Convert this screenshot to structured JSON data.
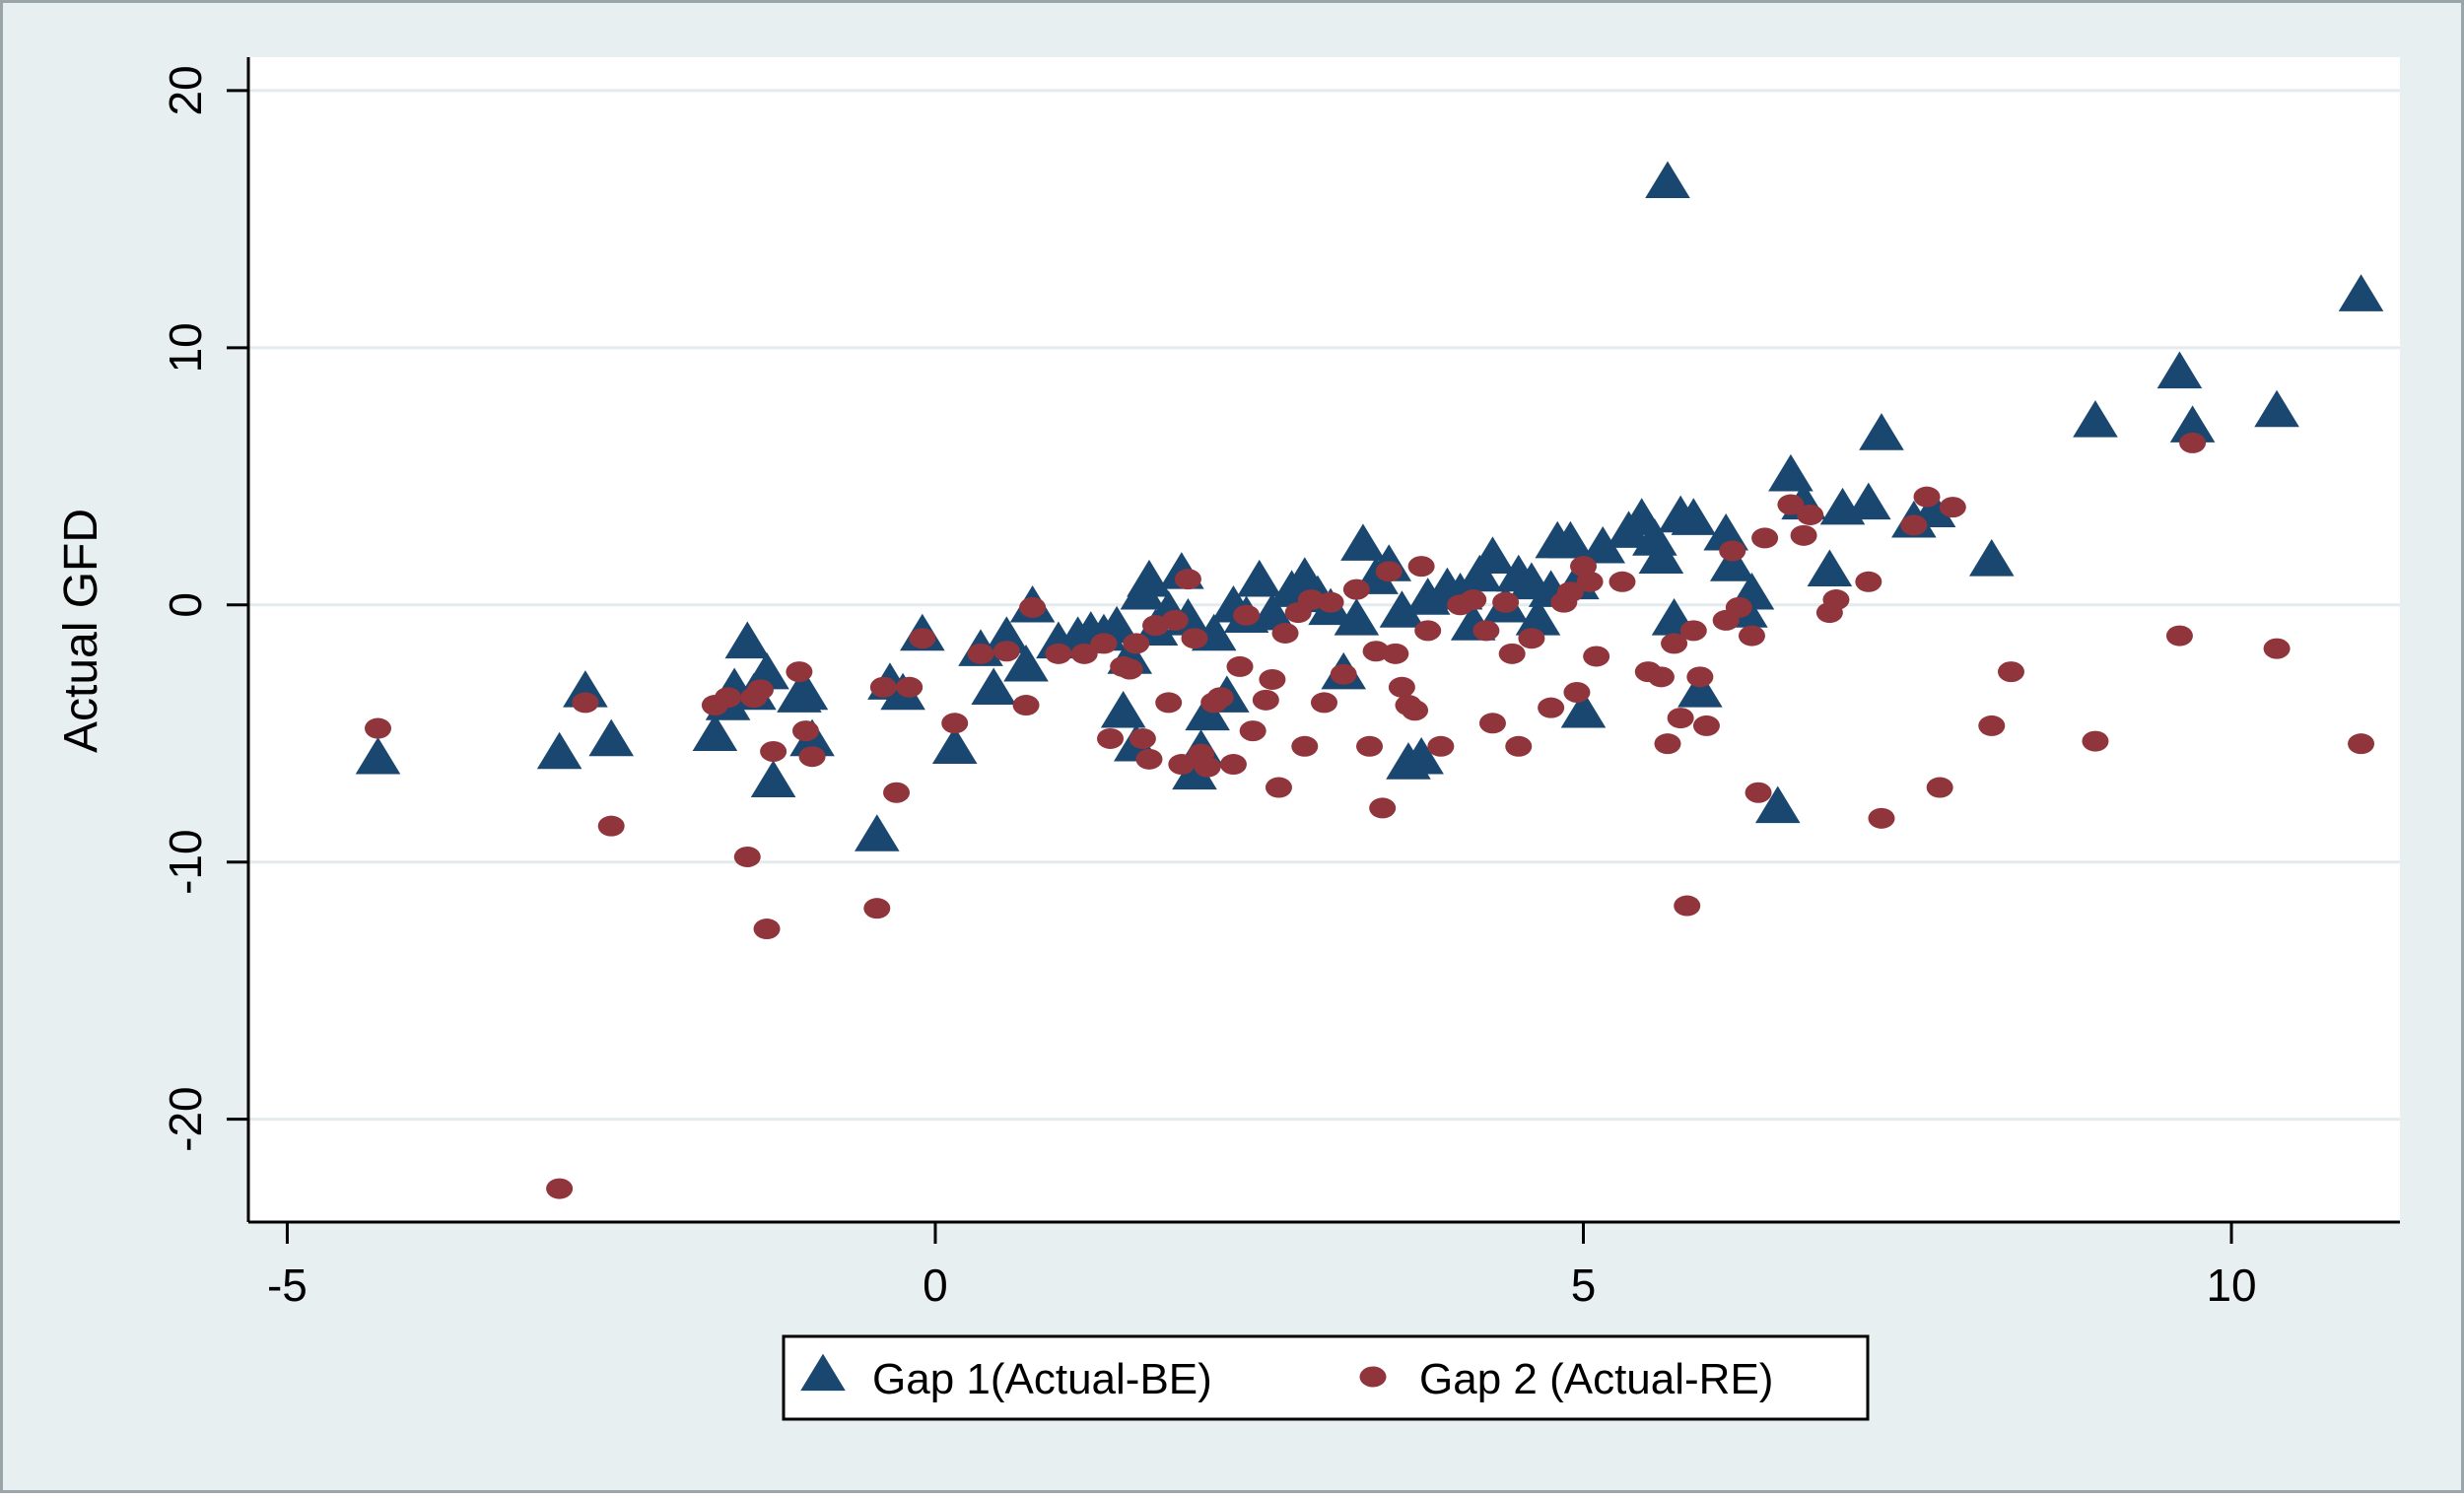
{
  "chart_data": {
    "type": "scatter",
    "title": "",
    "xlabel": "",
    "ylabel": "Actual GFD",
    "xlim": [
      -5.3,
      11.3
    ],
    "ylim": [
      -24,
      21.3
    ],
    "xticks": [
      -5,
      0,
      5,
      10
    ],
    "yticks": [
      -20,
      -10,
      0,
      10,
      20
    ],
    "xtick_labels": [
      "-5",
      "0",
      "5",
      "10"
    ],
    "ytick_labels": [
      "-20",
      "-10",
      "0",
      "10",
      "20"
    ],
    "grid": "horizontal",
    "legend_position": "bottom-outside",
    "colors": {
      "outer_bg": "#e8eff1",
      "plot_bg": "#ffffff",
      "gridline": "#e3ebee",
      "series1": "#1a476f",
      "series2": "#90353b",
      "axis": "#000000"
    },
    "series": [
      {
        "name": "Gap 1(Actual-BE)",
        "marker": "triangle",
        "points": [
          [
            -4.3,
            -6.0
          ],
          [
            -2.9,
            -5.8
          ],
          [
            -2.7,
            -3.4
          ],
          [
            -2.5,
            -5.3
          ],
          [
            -1.7,
            -5.1
          ],
          [
            -1.6,
            -3.9
          ],
          [
            -1.55,
            -3.3
          ],
          [
            -1.45,
            -1.5
          ],
          [
            -1.4,
            -3.5
          ],
          [
            -1.3,
            -2.7
          ],
          [
            -1.25,
            -6.9
          ],
          [
            -1.05,
            -3.6
          ],
          [
            -1.0,
            -3.5
          ],
          [
            -0.95,
            -5.3
          ],
          [
            -0.45,
            -9.0
          ],
          [
            -0.35,
            -3.1
          ],
          [
            -0.25,
            -3.5
          ],
          [
            -0.1,
            -1.2
          ],
          [
            0.15,
            -5.6
          ],
          [
            0.35,
            -1.8
          ],
          [
            0.45,
            -3.3
          ],
          [
            0.55,
            -1.3
          ],
          [
            0.7,
            -2.4
          ],
          [
            0.75,
            -0.1
          ],
          [
            0.95,
            -1.5
          ],
          [
            1.1,
            -1.3
          ],
          [
            1.2,
            -1.1
          ],
          [
            1.3,
            -1.2
          ],
          [
            1.4,
            -0.9
          ],
          [
            1.45,
            -4.2
          ],
          [
            1.5,
            -2.1
          ],
          [
            1.55,
            -5.5
          ],
          [
            1.6,
            0.4
          ],
          [
            1.65,
            0.9
          ],
          [
            1.7,
            -1.0
          ],
          [
            1.8,
            -0.3
          ],
          [
            1.9,
            1.2
          ],
          [
            1.95,
            -0.6
          ],
          [
            2.0,
            -6.6
          ],
          [
            2.05,
            -5.7
          ],
          [
            2.1,
            -4.3
          ],
          [
            2.15,
            -1.2
          ],
          [
            2.25,
            -3.6
          ],
          [
            2.3,
            -0.1
          ],
          [
            2.4,
            -0.5
          ],
          [
            2.5,
            0.9
          ],
          [
            2.6,
            -0.4
          ],
          [
            2.75,
            0.5
          ],
          [
            2.85,
            1.0
          ],
          [
            2.95,
            0.3
          ],
          [
            3.05,
            -0.2
          ],
          [
            3.15,
            -2.7
          ],
          [
            3.25,
            -0.6
          ],
          [
            3.3,
            2.3
          ],
          [
            3.4,
            1.0
          ],
          [
            3.5,
            1.5
          ],
          [
            3.6,
            -0.3
          ],
          [
            3.65,
            -6.2
          ],
          [
            3.75,
            -6.0
          ],
          [
            3.8,
            0.2
          ],
          [
            3.95,
            0.6
          ],
          [
            4.05,
            0.4
          ],
          [
            4.15,
            -0.8
          ],
          [
            4.2,
            1.1
          ],
          [
            4.3,
            1.8
          ],
          [
            4.4,
            -0.1
          ],
          [
            4.5,
            1.1
          ],
          [
            4.6,
            0.8
          ],
          [
            4.65,
            -0.6
          ],
          [
            4.75,
            0.5
          ],
          [
            4.8,
            2.4
          ],
          [
            4.9,
            2.4
          ],
          [
            4.95,
            0.8
          ],
          [
            5.0,
            -4.2
          ],
          [
            5.15,
            2.2
          ],
          [
            5.35,
            2.8
          ],
          [
            5.45,
            3.3
          ],
          [
            5.55,
            2.5
          ],
          [
            5.6,
            1.8
          ],
          [
            5.65,
            16.4
          ],
          [
            5.7,
            -0.6
          ],
          [
            5.75,
            3.4
          ],
          [
            5.85,
            3.3
          ],
          [
            5.9,
            -3.4
          ],
          [
            6.1,
            2.7
          ],
          [
            6.15,
            1.5
          ],
          [
            6.25,
            -0.3
          ],
          [
            6.3,
            0.4
          ],
          [
            6.5,
            -7.9
          ],
          [
            6.6,
            5.0
          ],
          [
            6.7,
            3.9
          ],
          [
            6.9,
            1.3
          ],
          [
            7.0,
            3.7
          ],
          [
            7.2,
            3.9
          ],
          [
            7.3,
            6.6
          ],
          [
            7.55,
            3.2
          ],
          [
            7.7,
            3.6
          ],
          [
            8.15,
            1.7
          ],
          [
            8.95,
            7.1
          ],
          [
            9.6,
            9.0
          ],
          [
            9.7,
            6.9
          ],
          [
            10.35,
            7.5
          ],
          [
            11.0,
            12.0
          ]
        ]
      },
      {
        "name": "Gap 2 (Actual-RE)",
        "marker": "circle",
        "points": [
          [
            -4.3,
            -4.8
          ],
          [
            -2.9,
            -22.7
          ],
          [
            -2.7,
            -3.8
          ],
          [
            -2.5,
            -8.6
          ],
          [
            -1.7,
            -3.9
          ],
          [
            -1.6,
            -3.6
          ],
          [
            -1.45,
            -9.8
          ],
          [
            -1.4,
            -3.6
          ],
          [
            -1.35,
            -3.3
          ],
          [
            -1.3,
            -12.6
          ],
          [
            -1.25,
            -5.7
          ],
          [
            -1.05,
            -2.6
          ],
          [
            -1.0,
            -4.9
          ],
          [
            -0.95,
            -5.9
          ],
          [
            -0.45,
            -11.8
          ],
          [
            -0.4,
            -3.2
          ],
          [
            -0.3,
            -7.3
          ],
          [
            -0.2,
            -3.2
          ],
          [
            -0.1,
            -1.3
          ],
          [
            0.15,
            -4.6
          ],
          [
            0.35,
            -1.9
          ],
          [
            0.55,
            -1.8
          ],
          [
            0.7,
            -3.9
          ],
          [
            0.75,
            -0.1
          ],
          [
            0.95,
            -1.9
          ],
          [
            1.15,
            -1.9
          ],
          [
            1.3,
            -1.5
          ],
          [
            1.35,
            -5.2
          ],
          [
            1.45,
            -2.4
          ],
          [
            1.5,
            -2.5
          ],
          [
            1.55,
            -1.5
          ],
          [
            1.6,
            -5.2
          ],
          [
            1.65,
            -6.0
          ],
          [
            1.7,
            -0.8
          ],
          [
            1.8,
            -3.8
          ],
          [
            1.85,
            -0.6
          ],
          [
            1.9,
            -6.2
          ],
          [
            1.95,
            1.0
          ],
          [
            2.0,
            -1.3
          ],
          [
            2.05,
            -5.8
          ],
          [
            2.1,
            -6.3
          ],
          [
            2.15,
            -3.8
          ],
          [
            2.2,
            -3.6
          ],
          [
            2.3,
            -6.2
          ],
          [
            2.35,
            -2.4
          ],
          [
            2.4,
            -0.4
          ],
          [
            2.45,
            -4.9
          ],
          [
            2.55,
            -3.7
          ],
          [
            2.6,
            -2.9
          ],
          [
            2.65,
            -7.1
          ],
          [
            2.7,
            -1.1
          ],
          [
            2.8,
            -0.3
          ],
          [
            2.85,
            -5.5
          ],
          [
            2.9,
            0.2
          ],
          [
            3.0,
            -3.8
          ],
          [
            3.05,
            0.1
          ],
          [
            3.15,
            -2.7
          ],
          [
            3.25,
            0.6
          ],
          [
            3.35,
            -5.5
          ],
          [
            3.4,
            -1.8
          ],
          [
            3.45,
            -7.9
          ],
          [
            3.5,
            1.3
          ],
          [
            3.55,
            -1.9
          ],
          [
            3.6,
            -3.2
          ],
          [
            3.65,
            -3.9
          ],
          [
            3.7,
            -4.1
          ],
          [
            3.75,
            1.5
          ],
          [
            3.8,
            -1.0
          ],
          [
            3.9,
            -5.5
          ],
          [
            4.05,
            0.0
          ],
          [
            4.15,
            0.2
          ],
          [
            4.25,
            -1.0
          ],
          [
            4.3,
            -4.6
          ],
          [
            4.4,
            0.1
          ],
          [
            4.45,
            -1.9
          ],
          [
            4.5,
            -5.5
          ],
          [
            4.6,
            -1.3
          ],
          [
            4.75,
            -4.0
          ],
          [
            4.85,
            0.1
          ],
          [
            4.9,
            0.5
          ],
          [
            4.95,
            -3.4
          ],
          [
            5.0,
            1.5
          ],
          [
            5.05,
            0.9
          ],
          [
            5.1,
            -2.0
          ],
          [
            5.3,
            0.9
          ],
          [
            5.5,
            -2.6
          ],
          [
            5.6,
            -2.8
          ],
          [
            5.65,
            -5.4
          ],
          [
            5.7,
            -1.5
          ],
          [
            5.75,
            -4.4
          ],
          [
            5.8,
            -11.7
          ],
          [
            5.85,
            -1.0
          ],
          [
            5.9,
            -2.8
          ],
          [
            5.95,
            -4.7
          ],
          [
            6.1,
            -0.6
          ],
          [
            6.15,
            2.1
          ],
          [
            6.2,
            -0.1
          ],
          [
            6.3,
            -1.2
          ],
          [
            6.35,
            -7.3
          ],
          [
            6.4,
            2.6
          ],
          [
            6.6,
            3.9
          ],
          [
            6.7,
            2.7
          ],
          [
            6.75,
            3.5
          ],
          [
            6.9,
            -0.3
          ],
          [
            6.95,
            0.2
          ],
          [
            7.2,
            0.9
          ],
          [
            7.3,
            -8.3
          ],
          [
            7.55,
            3.1
          ],
          [
            7.65,
            4.2
          ],
          [
            7.75,
            -7.1
          ],
          [
            7.85,
            3.8
          ],
          [
            8.15,
            -4.7
          ],
          [
            8.3,
            -2.6
          ],
          [
            8.95,
            -5.3
          ],
          [
            9.6,
            -1.2
          ],
          [
            9.7,
            6.3
          ],
          [
            10.35,
            -1.7
          ],
          [
            11.0,
            -5.4
          ]
        ]
      }
    ]
  }
}
